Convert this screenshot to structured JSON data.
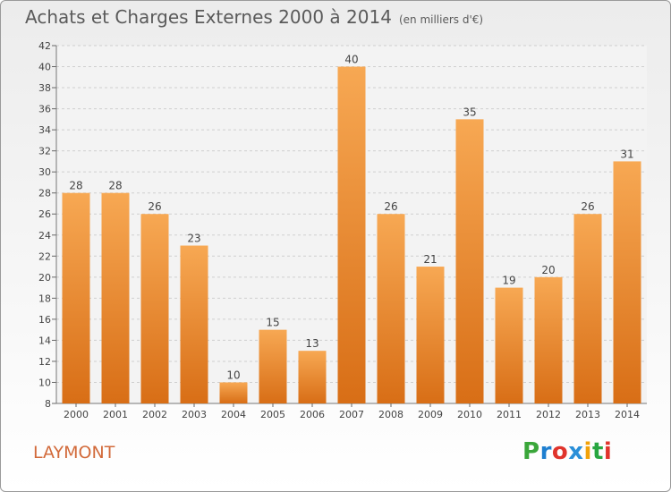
{
  "chart_data": {
    "type": "bar",
    "title": "Achats et Charges Externes 2000 à 2014",
    "subtitle": "(en milliers d'€)",
    "categories": [
      "2000",
      "2001",
      "2002",
      "2003",
      "2004",
      "2005",
      "2006",
      "2007",
      "2008",
      "2009",
      "2010",
      "2011",
      "2012",
      "2013",
      "2014"
    ],
    "values": [
      28,
      28,
      26,
      23,
      10,
      15,
      13,
      40,
      26,
      21,
      35,
      19,
      20,
      26,
      31
    ],
    "ylim": [
      8,
      42
    ],
    "yticks": [
      8,
      10,
      12,
      14,
      16,
      18,
      20,
      22,
      24,
      26,
      28,
      30,
      32,
      34,
      36,
      38,
      40,
      42
    ],
    "grid": true,
    "xlabel": "",
    "ylabel": ""
  },
  "commune": "LAYMONT",
  "brand": {
    "letters": [
      "P",
      "r",
      "o",
      "x",
      "i",
      "t",
      "i"
    ],
    "colors": [
      "#3aa63a",
      "#1e7fd0",
      "#e0342c",
      "#2a8fd8",
      "#f2a20a",
      "#28a640",
      "#e0342c"
    ]
  },
  "colors": {
    "bar_light": "#f7a853",
    "bar_dark": "#d86e16",
    "text": "#444444",
    "commune": "#d26a3a"
  }
}
